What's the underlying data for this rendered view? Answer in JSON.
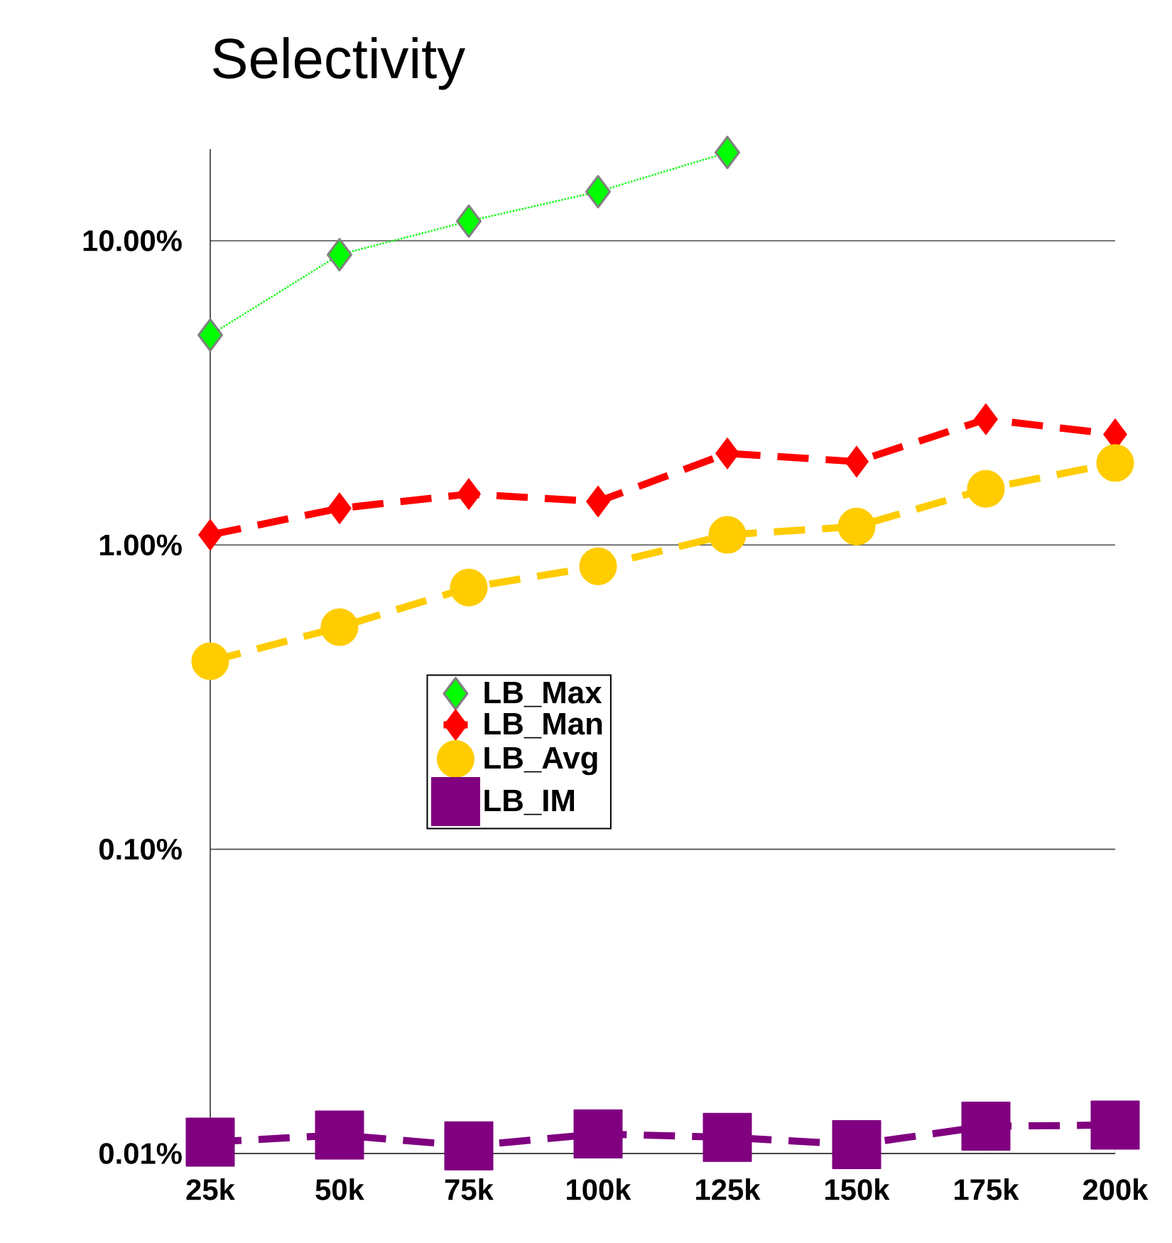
{
  "chart_data": {
    "type": "line",
    "title": "Selectivity",
    "categories": [
      "25k",
      "50k",
      "75k",
      "100k",
      "125k",
      "150k",
      "175k",
      "200k"
    ],
    "series": [
      {
        "name": "LB_Max",
        "color": "#00ff00",
        "marker": "diamond",
        "line_style": "dotted",
        "values": [
          4.9,
          9.0,
          11.6,
          14.5,
          19.5,
          null,
          null,
          null
        ]
      },
      {
        "name": "LB_Man",
        "color": "#ff0000",
        "marker": "diamond",
        "line_style": "dashed",
        "values": [
          1.08,
          1.32,
          1.47,
          1.39,
          2.0,
          1.88,
          2.59,
          2.31
        ]
      },
      {
        "name": "LB_Avg",
        "color": "#ffcc00",
        "marker": "circle",
        "line_style": "dashed",
        "values": [
          0.415,
          0.537,
          0.725,
          0.851,
          1.08,
          1.15,
          1.53,
          1.86
        ]
      },
      {
        "name": "LB_IM",
        "color": "#800080",
        "marker": "square",
        "line_style": "dashed",
        "values": [
          0.0109,
          0.0115,
          0.0106,
          0.0116,
          0.0113,
          0.0107,
          0.0123,
          0.0124
        ]
      }
    ],
    "log": "y",
    "ylim": [
      0.01,
      20
    ],
    "yticks": [
      {
        "value": 0.01,
        "label": "0.01%"
      },
      {
        "value": 0.1,
        "label": "0.10%"
      },
      {
        "value": 1,
        "label": "1.00%"
      },
      {
        "value": 10,
        "label": "10.00%"
      }
    ],
    "grid": "y",
    "legend": "center"
  }
}
